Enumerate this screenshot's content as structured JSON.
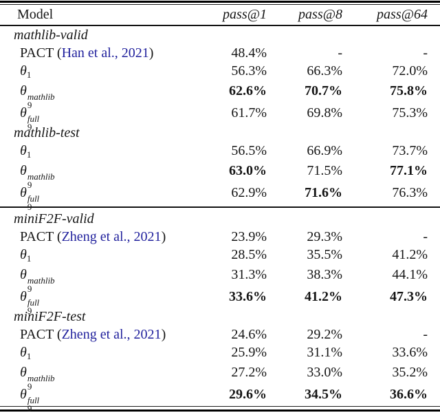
{
  "colors": {
    "citation_blue": "#1f1f9c",
    "text": "#151515",
    "rule": "#000000"
  },
  "table": {
    "columns": [
      "Model",
      "pass@1",
      "pass@8",
      "pass@64"
    ],
    "sections": [
      {
        "label": "mathlib-valid",
        "divider_after": false,
        "rows": [
          {
            "label": {
              "type": "cite",
              "prefix": "PACT (",
              "citation": "Han et al., 2021",
              "suffix": ")"
            },
            "values": [
              {
                "text": "48.4%",
                "bold": false
              },
              {
                "text": "-",
                "bold": false
              },
              {
                "text": "-",
                "bold": false
              }
            ]
          },
          {
            "label": {
              "type": "math",
              "base": "θ",
              "sub": "1"
            },
            "values": [
              {
                "text": "56.3%",
                "bold": false
              },
              {
                "text": "66.3%",
                "bold": false
              },
              {
                "text": "72.0%",
                "bold": false
              }
            ]
          },
          {
            "label": {
              "type": "math",
              "base": "θ",
              "sub": "9",
              "sup": "mathlib"
            },
            "values": [
              {
                "text": "62.6%",
                "bold": true
              },
              {
                "text": "70.7%",
                "bold": true
              },
              {
                "text": "75.8%",
                "bold": true
              }
            ]
          },
          {
            "label": {
              "type": "math",
              "base": "θ",
              "sub": "9",
              "sup": "full"
            },
            "values": [
              {
                "text": "61.7%",
                "bold": false
              },
              {
                "text": "69.8%",
                "bold": false
              },
              {
                "text": "75.3%",
                "bold": false
              }
            ]
          }
        ]
      },
      {
        "label": "mathlib-test",
        "divider_after": true,
        "rows": [
          {
            "label": {
              "type": "math",
              "base": "θ",
              "sub": "1"
            },
            "values": [
              {
                "text": "56.5%",
                "bold": false
              },
              {
                "text": "66.9%",
                "bold": false
              },
              {
                "text": "73.7%",
                "bold": false
              }
            ]
          },
          {
            "label": {
              "type": "math",
              "base": "θ",
              "sub": "9",
              "sup": "mathlib"
            },
            "values": [
              {
                "text": "63.0%",
                "bold": true
              },
              {
                "text": "71.5%",
                "bold": false
              },
              {
                "text": "77.1%",
                "bold": true
              }
            ]
          },
          {
            "label": {
              "type": "math",
              "base": "θ",
              "sub": "9",
              "sup": "full"
            },
            "values": [
              {
                "text": "62.9%",
                "bold": false
              },
              {
                "text": "71.6%",
                "bold": true
              },
              {
                "text": "76.3%",
                "bold": false
              }
            ]
          }
        ]
      },
      {
        "label": "miniF2F-valid",
        "divider_after": false,
        "rows": [
          {
            "label": {
              "type": "cite",
              "prefix": "PACT (",
              "citation": "Zheng et al., 2021",
              "suffix": ")"
            },
            "values": [
              {
                "text": "23.9%",
                "bold": false
              },
              {
                "text": "29.3%",
                "bold": false
              },
              {
                "text": "-",
                "bold": false
              }
            ]
          },
          {
            "label": {
              "type": "math",
              "base": "θ",
              "sub": "1"
            },
            "values": [
              {
                "text": "28.5%",
                "bold": false
              },
              {
                "text": "35.5%",
                "bold": false
              },
              {
                "text": "41.2%",
                "bold": false
              }
            ]
          },
          {
            "label": {
              "type": "math",
              "base": "θ",
              "sub": "9",
              "sup": "mathlib"
            },
            "values": [
              {
                "text": "31.3%",
                "bold": false
              },
              {
                "text": "38.3%",
                "bold": false
              },
              {
                "text": "44.1%",
                "bold": false
              }
            ]
          },
          {
            "label": {
              "type": "math",
              "base": "θ",
              "sub": "9",
              "sup": "full"
            },
            "values": [
              {
                "text": "33.6%",
                "bold": true
              },
              {
                "text": "41.2%",
                "bold": true
              },
              {
                "text": "47.3%",
                "bold": true
              }
            ]
          }
        ]
      },
      {
        "label": "miniF2F-test",
        "divider_after": false,
        "rows": [
          {
            "label": {
              "type": "cite",
              "prefix": "PACT (",
              "citation": "Zheng et al., 2021",
              "suffix": ")"
            },
            "values": [
              {
                "text": "24.6%",
                "bold": false
              },
              {
                "text": "29.2%",
                "bold": false
              },
              {
                "text": "-",
                "bold": false
              }
            ]
          },
          {
            "label": {
              "type": "math",
              "base": "θ",
              "sub": "1"
            },
            "values": [
              {
                "text": "25.9%",
                "bold": false
              },
              {
                "text": "31.1%",
                "bold": false
              },
              {
                "text": "33.6%",
                "bold": false
              }
            ]
          },
          {
            "label": {
              "type": "math",
              "base": "θ",
              "sub": "9",
              "sup": "mathlib"
            },
            "values": [
              {
                "text": "27.2%",
                "bold": false
              },
              {
                "text": "33.0%",
                "bold": false
              },
              {
                "text": "35.2%",
                "bold": false
              }
            ]
          },
          {
            "label": {
              "type": "math",
              "base": "θ",
              "sub": "9",
              "sup": "full"
            },
            "values": [
              {
                "text": "29.6%",
                "bold": true
              },
              {
                "text": "34.5%",
                "bold": true
              },
              {
                "text": "36.6%",
                "bold": true
              }
            ]
          }
        ]
      }
    ]
  }
}
